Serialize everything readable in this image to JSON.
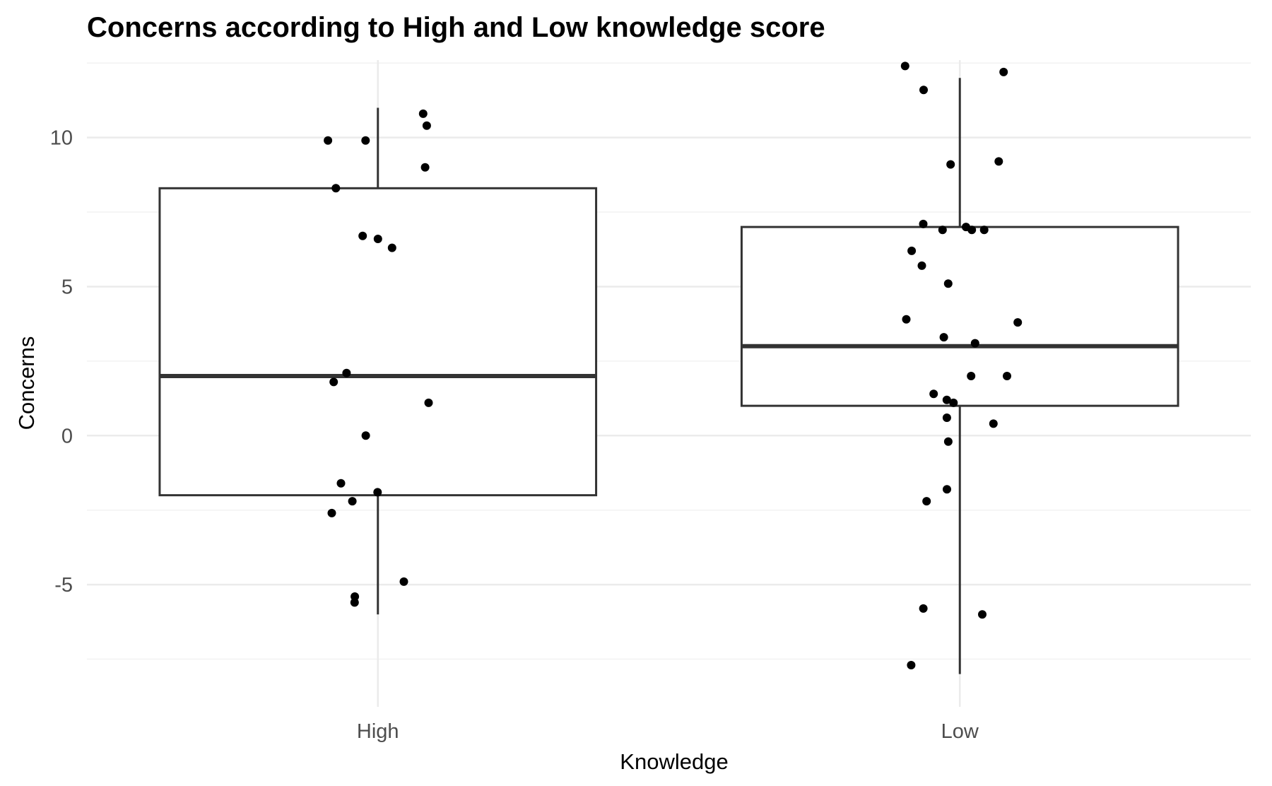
{
  "chart_data": {
    "type": "box",
    "title": "Concerns according to High and Low knowledge score",
    "xlabel": "Knowledge",
    "ylabel": "Concerns",
    "categories": [
      "High",
      "Low"
    ],
    "ylim": [
      -9.1,
      12.6
    ],
    "yticks": [
      -5,
      0,
      5,
      10
    ],
    "grid": true,
    "legend": "none",
    "colors": {
      "box_stroke": "#333333",
      "point": "#000000",
      "grid_major": "#ebebeb",
      "grid_minor": "#f2f2f2"
    },
    "boxes": [
      {
        "category": "High",
        "lower_whisker": -6.0,
        "q1": -2.0,
        "median": 2.0,
        "q3": 8.3,
        "upper_whisker": 11.0
      },
      {
        "category": "Low",
        "lower_whisker": -8.0,
        "q1": 1.0,
        "median": 3.0,
        "q3": 7.0,
        "upper_whisker": 12.0
      }
    ],
    "points": [
      {
        "category": "High",
        "values": [
          10.8,
          10.4,
          9.9,
          9.9,
          9.0,
          8.3,
          6.7,
          6.6,
          6.3,
          2.1,
          1.8,
          1.1,
          0.0,
          -1.6,
          -1.9,
          -2.2,
          -2.6,
          -4.9,
          -5.4,
          -5.6
        ]
      },
      {
        "category": "Low",
        "values": [
          12.4,
          12.2,
          11.6,
          9.2,
          9.1,
          7.1,
          7.0,
          6.9,
          6.9,
          6.9,
          6.2,
          5.7,
          5.1,
          3.9,
          3.8,
          3.3,
          3.1,
          2.0,
          2.0,
          1.4,
          1.2,
          1.1,
          0.6,
          0.4,
          -0.2,
          -1.8,
          -2.2,
          -5.8,
          -6.0,
          -7.7
        ]
      }
    ]
  }
}
